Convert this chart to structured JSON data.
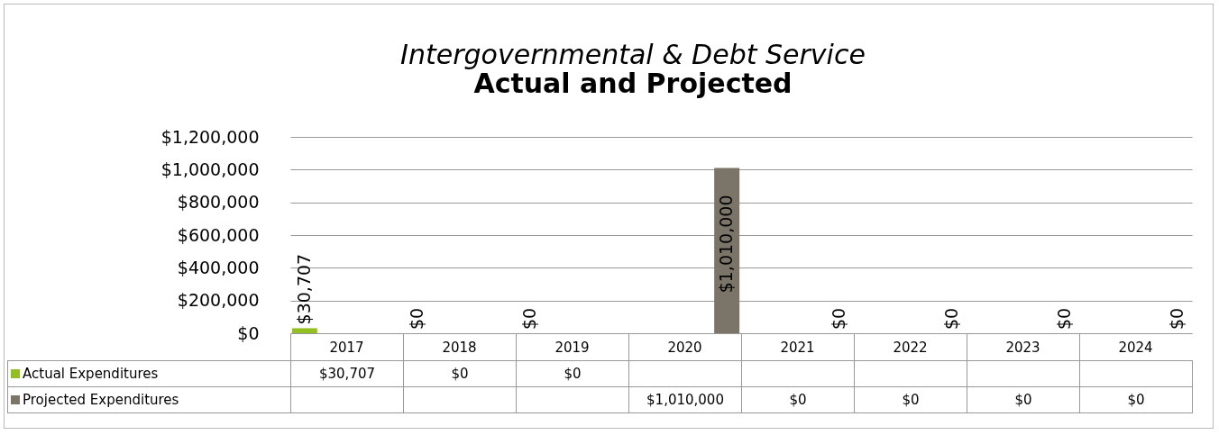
{
  "chart_data": {
    "type": "bar",
    "title": "Intergovernmental & Debt Service",
    "subtitle": "Actual and Projected",
    "categories": [
      "2017",
      "2018",
      "2019",
      "2020",
      "2021",
      "2022",
      "2023",
      "2024"
    ],
    "series": [
      {
        "name": "Actual Expenditures",
        "color": "#92c01f",
        "values": [
          30707,
          0,
          0,
          null,
          null,
          null,
          null,
          null
        ],
        "value_labels": [
          "$30,707",
          "$0",
          "$0",
          null,
          null,
          null,
          null,
          null
        ]
      },
      {
        "name": "Projected Expenditures",
        "color": "#7b7468",
        "values": [
          null,
          null,
          null,
          1010000,
          0,
          0,
          0,
          0
        ],
        "value_labels": [
          null,
          null,
          null,
          "$1,010,000",
          "$0",
          "$0",
          "$0",
          "$0"
        ]
      }
    ],
    "ylim": [
      0,
      1200000
    ],
    "yticks": [
      {
        "value": 0,
        "label": "$0"
      },
      {
        "value": 200000,
        "label": "$200,000"
      },
      {
        "value": 400000,
        "label": "$400,000"
      },
      {
        "value": 600000,
        "label": "$600,000"
      },
      {
        "value": 800000,
        "label": "$800,000"
      },
      {
        "value": 1000000,
        "label": "$1,000,000"
      },
      {
        "value": 1200000,
        "label": "$1,200,000"
      }
    ],
    "grid": "y",
    "legend": "bottom left"
  }
}
